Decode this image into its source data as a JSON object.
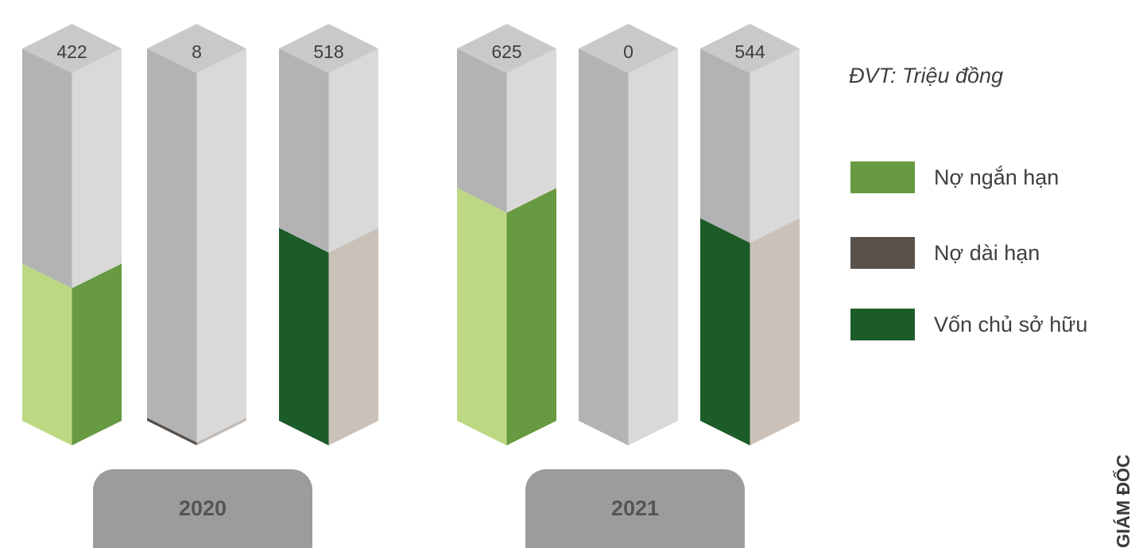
{
  "unit_label": "ĐVT: Triệu đồng",
  "side_title": "GIÁM ĐỐC",
  "legend": [
    {
      "label": "Nợ ngắn hạn",
      "color": "#679a41"
    },
    {
      "label": "Nợ dài hạn",
      "color": "#59524c"
    },
    {
      "label": "Vốn chủ sở hữu",
      "color": "#1b5c28"
    }
  ],
  "chart_data": {
    "type": "bar",
    "categories": [
      "2020",
      "2021"
    ],
    "series": [
      {
        "name": "Nợ ngắn hạn",
        "values": [
          422,
          625
        ],
        "color_front": "#bcd883",
        "color_side": "#679a41"
      },
      {
        "name": "Nợ dài hạn",
        "values": [
          8,
          0
        ],
        "color_front": "#59524c",
        "color_side": "#c2b9b3"
      },
      {
        "name": "Vốn chủ sở hữu",
        "values": [
          518,
          544
        ],
        "color_front": "#1b5c28",
        "color_side": "#ccc1b8"
      }
    ],
    "labels": [
      [
        "422",
        "8",
        "518"
      ],
      [
        "625",
        "0",
        "544"
      ]
    ],
    "ylim": [
      0,
      1000
    ]
  }
}
